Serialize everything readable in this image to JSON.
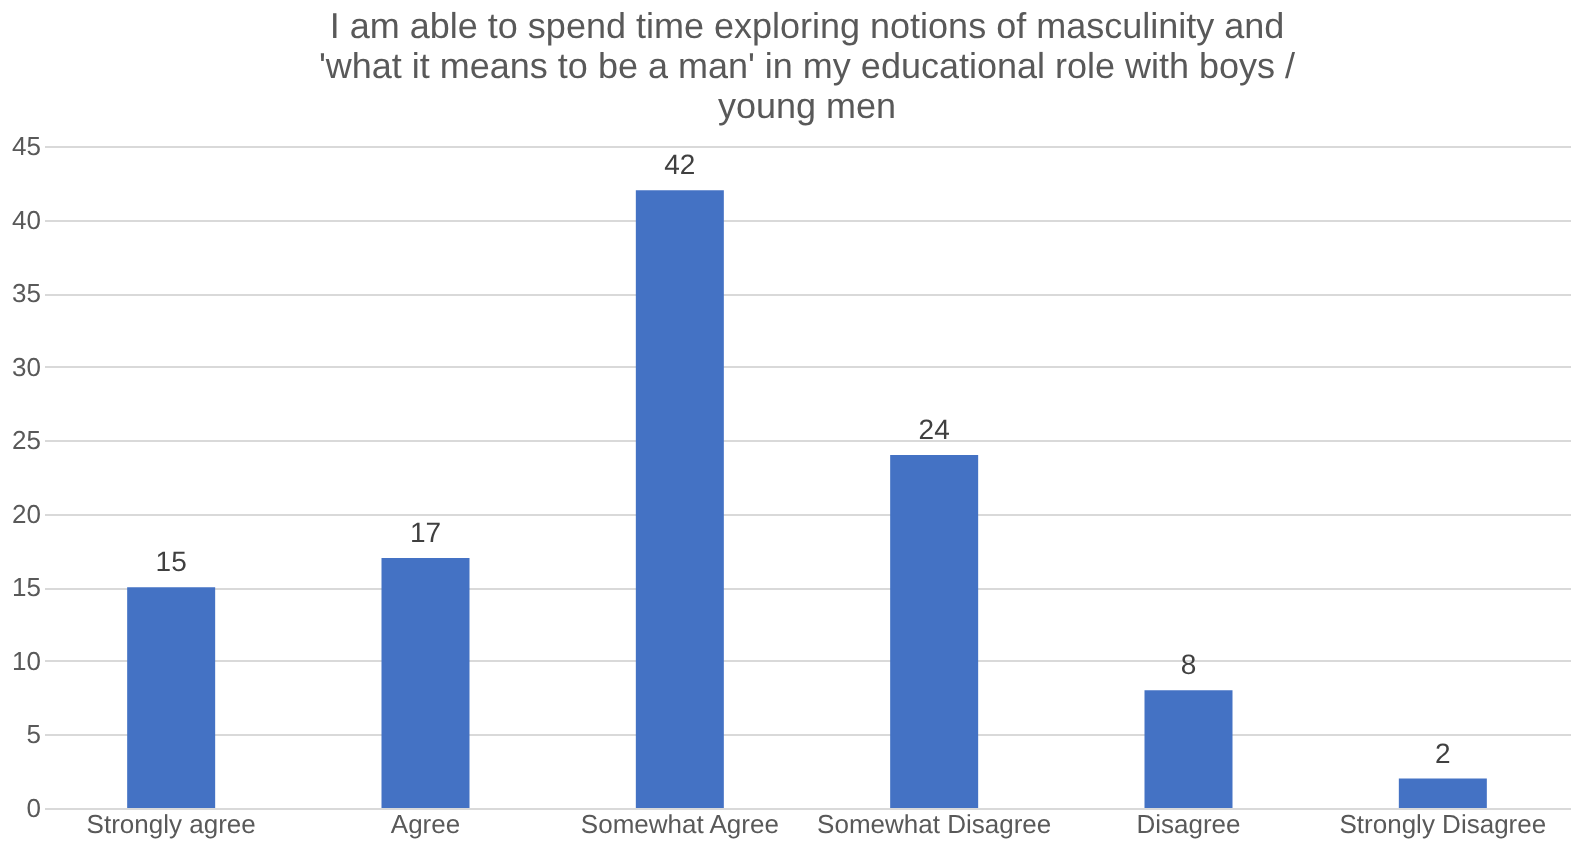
{
  "chart_data": {
    "type": "bar",
    "title": "I am able to spend time exploring notions of masculinity and 'what it means to be a man' in my educational role with boys / young men",
    "categories": [
      "Strongly agree",
      "Agree",
      "Somewhat Agree",
      "Somewhat Disagree",
      "Disagree",
      "Strongly Disagree"
    ],
    "values": [
      15,
      17,
      42,
      24,
      8,
      2
    ],
    "color": "#4472c4",
    "ylim": [
      0,
      45
    ],
    "yticks": [
      0,
      5,
      10,
      15,
      20,
      25,
      30,
      35,
      40,
      45
    ],
    "grid": "y",
    "data_labels": true
  }
}
